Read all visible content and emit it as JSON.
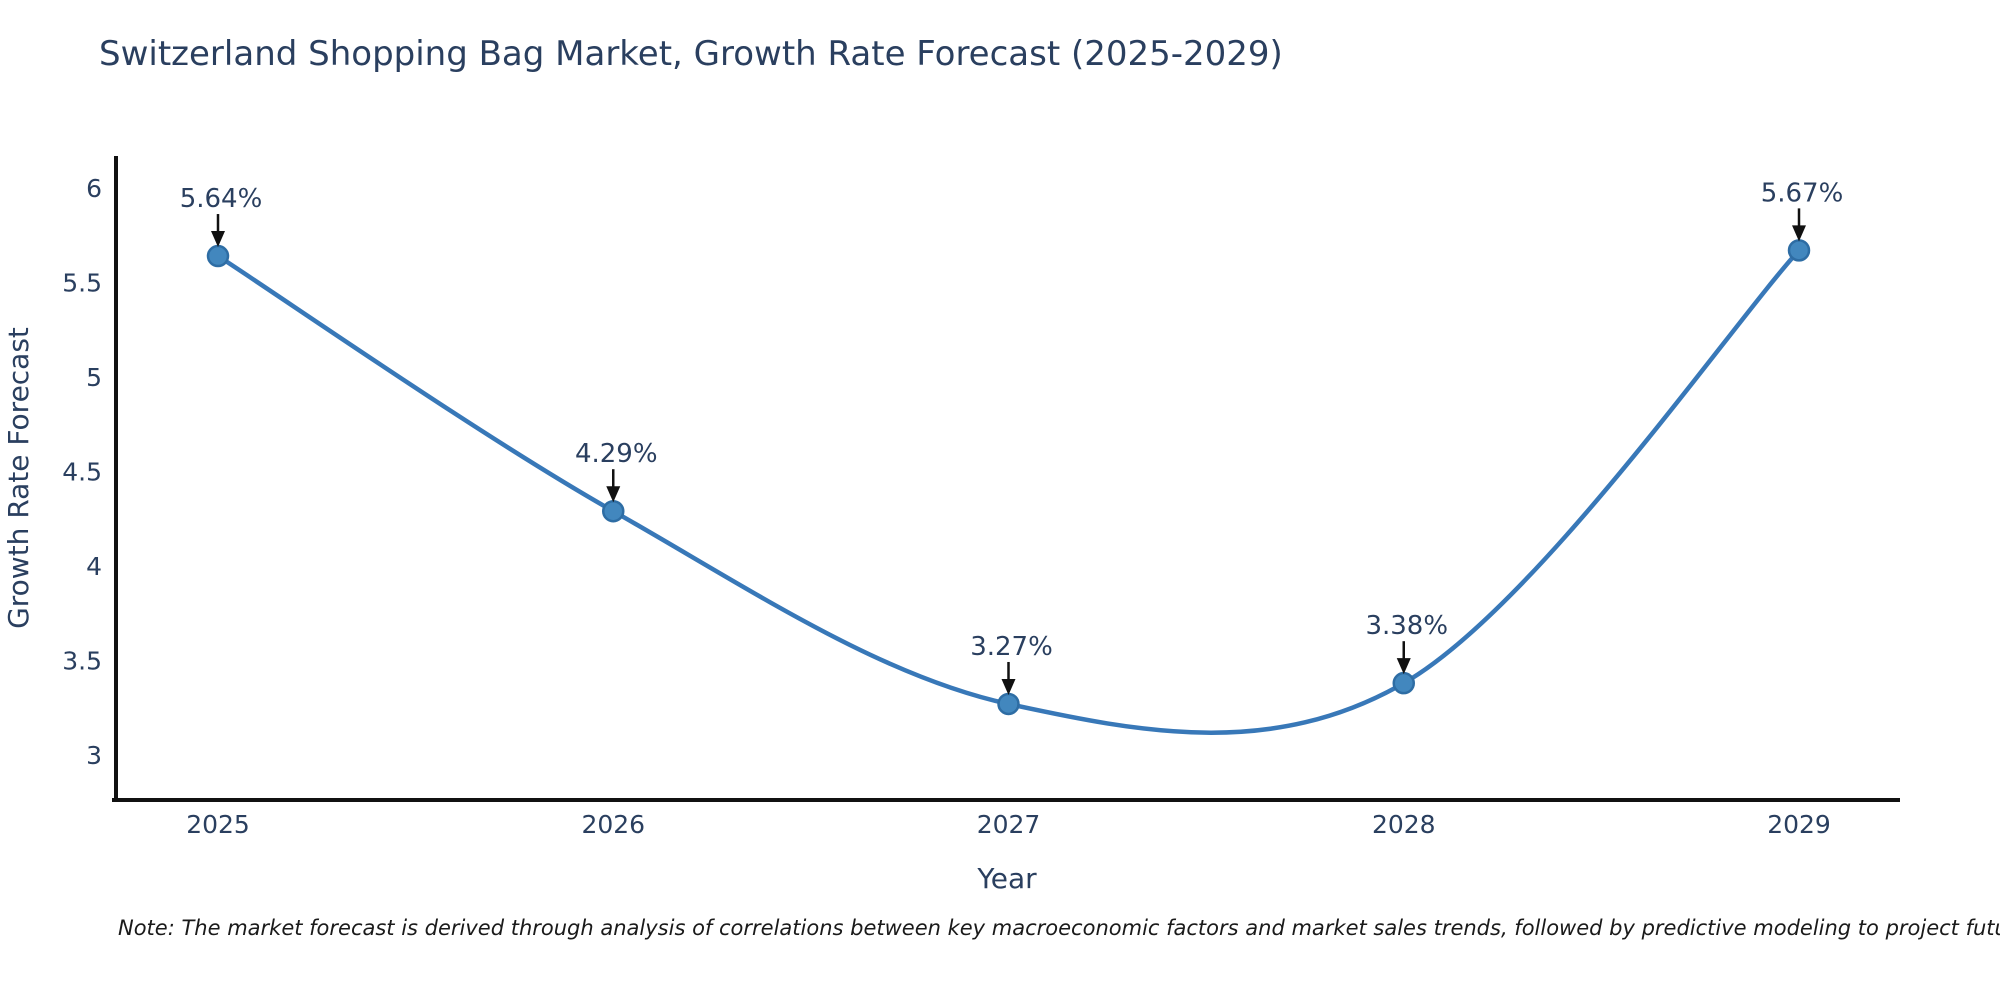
{
  "page": {
    "footnote": "Note: The market forecast is derived through analysis of correlations between key macroeconomic factors and market sales trends, followed by predictive modeling to project future sales"
  },
  "chart_data": {
    "type": "line",
    "line_shape": "spline",
    "title": "Switzerland Shopping Bag Market, Growth Rate Forecast (2025-2029)",
    "xlabel": "Year",
    "ylabel": "Growth Rate Forecast",
    "categories": [
      "2025",
      "2026",
      "2027",
      "2028",
      "2029"
    ],
    "series": [
      {
        "name": "Growth Rate Forecast",
        "values": [
          5.64,
          4.29,
          3.27,
          3.38,
          5.67
        ],
        "point_labels": [
          "5.64%",
          "4.29%",
          "3.27%",
          "3.38%",
          "5.67%"
        ]
      }
    ],
    "y_ticks": [
      3,
      3.5,
      4,
      4.5,
      5,
      5.5,
      6
    ],
    "ylim": [
      2.76,
      6.15
    ],
    "grid": false,
    "legend": false,
    "markers": true,
    "annotations_have_arrows": true,
    "colors": {
      "line": "#3878b8",
      "marker_fill": "#4287be",
      "marker_edge": "#2e6da4",
      "text": "#2a3f5f",
      "axis": "#111111",
      "arrow": "#111111",
      "background": "#ffffff"
    }
  }
}
